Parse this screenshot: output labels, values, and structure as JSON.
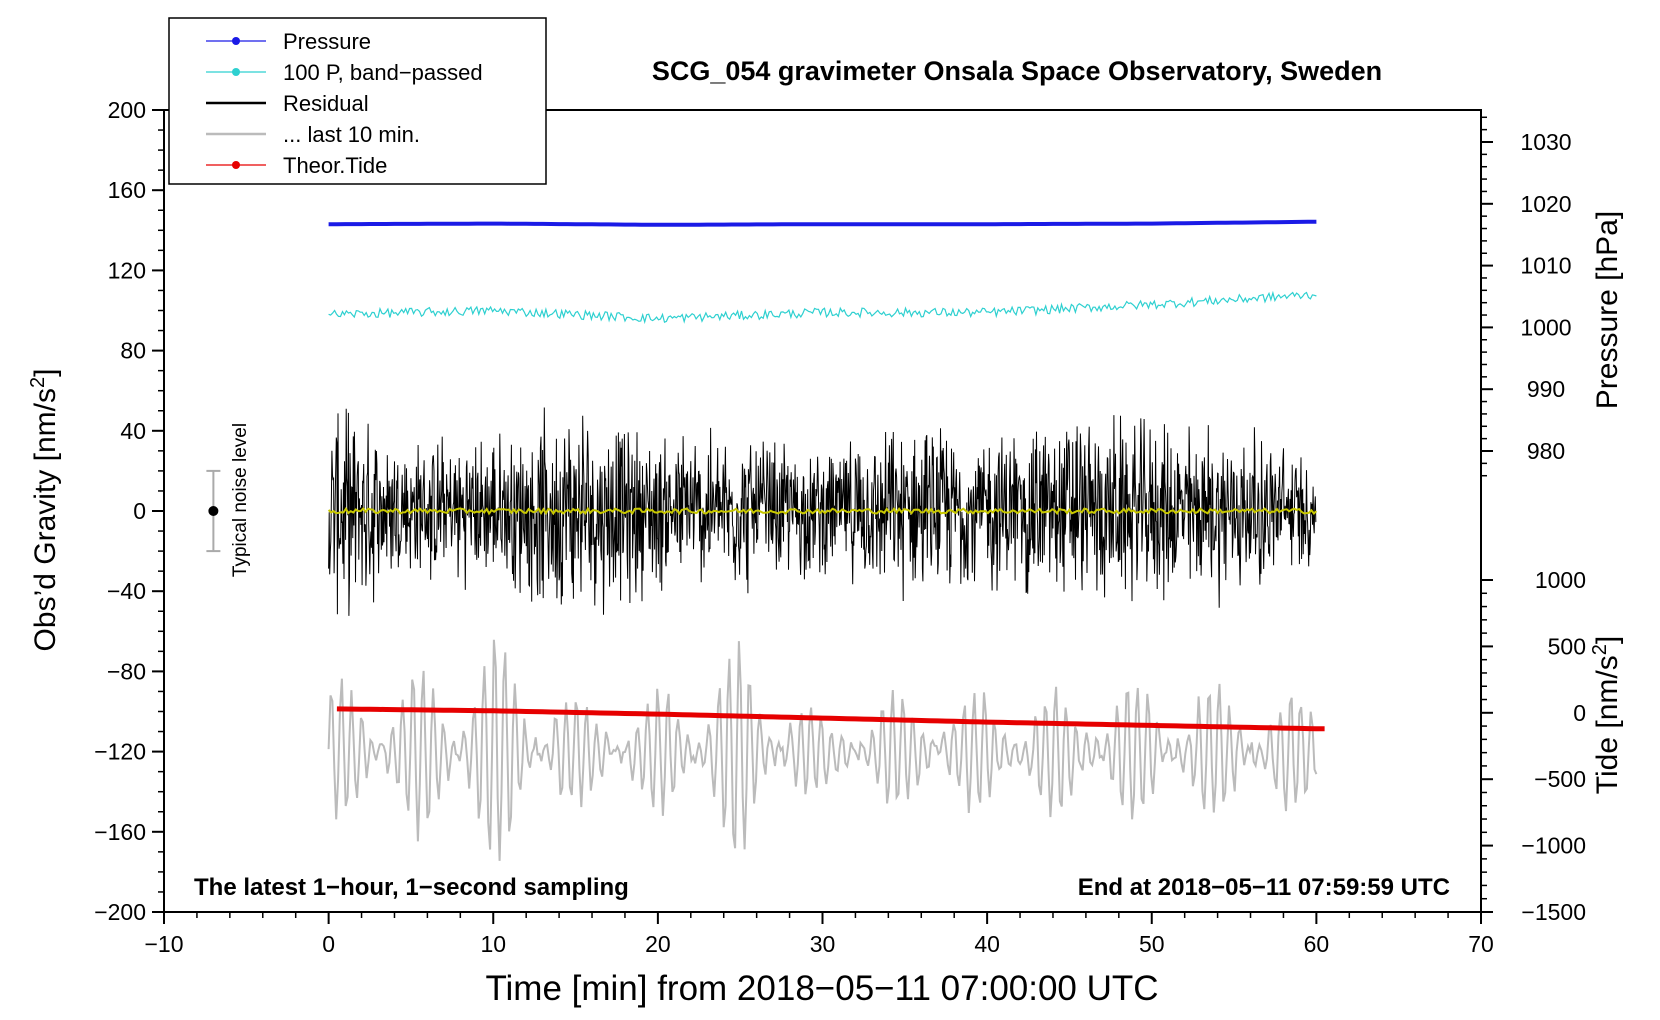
{
  "chart_data": {
    "type": "line",
    "title": "SCG_054 gravimeter Onsala Space Observatory, Sweden",
    "xlabel": "Time [min] from 2018−05−11 07:00:00 UTC",
    "ylabel_main": "Obs’d Gravity [nm/s",
    "ylabel_sup": "2",
    "ylabel_close": "]",
    "ylabel_pressure": "Pressure [hPa]",
    "ylabel_tide": "Tide [nm/s",
    "ylabel_tide_sup": "2",
    "ylabel_tide_close": "]",
    "xlim": [
      -10,
      70
    ],
    "ylim": [
      -200,
      200
    ],
    "x_ticks": [
      -10,
      0,
      10,
      20,
      30,
      40,
      50,
      60,
      70
    ],
    "x_tick_labels": [
      "−10",
      "0",
      "10",
      "20",
      "30",
      "40",
      "50",
      "60",
      "70"
    ],
    "y_ticks": [
      200,
      160,
      120,
      80,
      40,
      0,
      -40,
      -80,
      -120,
      -160,
      -200
    ],
    "y_tick_labels": [
      "200",
      "160",
      "120",
      "80",
      "40",
      "0",
      "−40",
      "−80",
      "−120",
      "−160",
      "−200"
    ],
    "pressure_ticks": [
      1030,
      1020,
      1010,
      1000,
      990,
      980
    ],
    "pressure_tick_labels": [
      "1030",
      "1020",
      "1010",
      "1000",
      "990",
      "980"
    ],
    "tide_ticks": [
      1000,
      500,
      0,
      -500,
      -1000,
      -1500
    ],
    "tide_tick_labels": [
      "1000",
      "500",
      "0",
      "−500",
      "−1000",
      "−1500"
    ],
    "legend": [
      {
        "label": "Pressure",
        "color": "#1a1ae6",
        "marker": true
      },
      {
        "label": "100 P, band−passed",
        "color": "#2ed0d0",
        "marker": true
      },
      {
        "label": "Residual",
        "color": "#000000",
        "marker": false
      },
      {
        "label": "... last 10 min.",
        "color": "#bbbbbb",
        "marker": false
      },
      {
        "label": "Theor.Tide",
        "color": "#e60000",
        "marker": true
      }
    ],
    "noise_label": "Typical noise level",
    "noise_level": {
      "x": -7,
      "center": 0,
      "half_range": 20
    },
    "note_left": "The latest 1−hour, 1−second sampling",
    "note_right": "End at 2018−05−11 07:59:59 UTC",
    "series": [
      {
        "name": "Pressure",
        "axis": "pressure_hPa",
        "x": [
          0,
          10,
          20,
          30,
          40,
          50,
          60
        ],
        "values": [
          1016.7,
          1016.8,
          1016.6,
          1016.7,
          1016.7,
          1016.8,
          1017.1
        ],
        "color": "#1a1ae6"
      },
      {
        "name": "100 P, band-passed",
        "axis": "gravity_nm_s2",
        "x": [
          0,
          10,
          20,
          30,
          40,
          50,
          60
        ],
        "values": [
          98,
          100,
          96,
          99,
          99,
          103,
          108
        ],
        "color": "#2ed0d0"
      },
      {
        "name": "Residual",
        "axis": "gravity_nm_s2",
        "envelope": {
          "x": [
            0,
            5,
            10,
            15,
            20,
            25,
            30,
            35,
            40,
            45,
            50,
            55,
            60
          ],
          "amplitude": [
            60,
            40,
            42,
            60,
            45,
            45,
            35,
            48,
            45,
            55,
            50,
            50,
            30
          ]
        },
        "color": "#000000"
      },
      {
        "name": "Residual smoothed",
        "axis": "gravity_nm_s2",
        "x": [
          0,
          60
        ],
        "values": [
          0,
          0
        ],
        "color": "#c8c800"
      },
      {
        "name": "... last 10 min.",
        "axis": "gravity_nm_s2",
        "center": -120,
        "envelope": {
          "x": [
            0,
            5,
            10,
            15,
            20,
            25,
            30,
            35,
            40,
            45,
            50,
            55,
            60
          ],
          "amplitude": [
            35,
            40,
            60,
            25,
            30,
            55,
            15,
            30,
            30,
            32,
            35,
            32,
            28
          ]
        },
        "color": "#bbbbbb"
      },
      {
        "name": "Theor.Tide",
        "axis": "tide_nm_s2",
        "x": [
          0,
          10,
          20,
          30,
          40,
          50,
          60
        ],
        "values": [
          30,
          15,
          -10,
          -40,
          -70,
          -95,
          -120
        ],
        "color": "#e60000"
      }
    ]
  }
}
